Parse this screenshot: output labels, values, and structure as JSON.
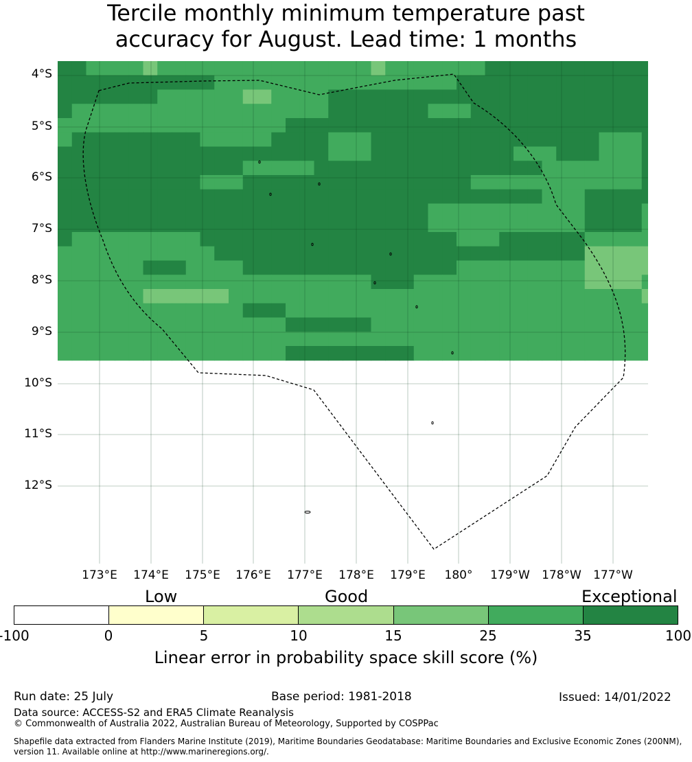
{
  "title": {
    "line1": "Tercile monthly minimum temperature past",
    "line2": "accuracy for August. Lead time: 1 months"
  },
  "map": {
    "lat_labels": [
      "4°S",
      "5°S",
      "6°S",
      "7°S",
      "8°S",
      "9°S",
      "10°S",
      "11°S",
      "12°S"
    ],
    "lon_labels": [
      "173°E",
      "174°E",
      "175°E",
      "176°E",
      "177°E",
      "178°E",
      "179°E",
      "180°",
      "179°W",
      "178°W",
      "177°W"
    ],
    "boundary_style": "dashed black (EEZ)",
    "grid": "on",
    "cell_classes": {
      "0": "no data (white)",
      "4": "15 to 25",
      "5": "25 to 35",
      "6": "35 to 100"
    },
    "cells": [
      [
        6,
        6,
        5,
        5,
        5,
        5,
        4,
        5,
        5,
        5,
        5,
        5,
        5,
        5,
        5,
        5,
        5,
        5,
        5,
        5,
        5,
        5,
        4,
        5,
        5,
        5,
        5,
        5,
        5,
        5,
        6,
        6,
        6,
        6,
        6,
        6,
        6,
        6,
        6,
        6,
        6,
        6
      ],
      [
        6,
        6,
        6,
        6,
        6,
        6,
        6,
        6,
        6,
        6,
        6,
        5,
        5,
        5,
        5,
        5,
        5,
        5,
        5,
        5,
        5,
        5,
        5,
        5,
        5,
        5,
        5,
        5,
        6,
        6,
        6,
        6,
        6,
        6,
        6,
        6,
        6,
        6,
        6,
        6,
        6,
        6
      ],
      [
        6,
        6,
        6,
        6,
        6,
        6,
        6,
        5,
        5,
        5,
        5,
        5,
        5,
        4,
        4,
        5,
        5,
        5,
        5,
        6,
        6,
        6,
        6,
        6,
        6,
        6,
        6,
        6,
        6,
        6,
        6,
        6,
        6,
        6,
        6,
        6,
        6,
        6,
        6,
        6,
        6,
        6
      ],
      [
        6,
        5,
        5,
        5,
        5,
        5,
        5,
        5,
        5,
        5,
        5,
        5,
        5,
        5,
        5,
        5,
        5,
        5,
        5,
        6,
        6,
        6,
        6,
        6,
        6,
        6,
        5,
        5,
        5,
        6,
        6,
        6,
        6,
        6,
        6,
        6,
        6,
        6,
        6,
        6,
        6,
        6
      ],
      [
        5,
        5,
        5,
        5,
        5,
        5,
        5,
        5,
        5,
        5,
        5,
        5,
        5,
        5,
        5,
        5,
        6,
        6,
        6,
        6,
        6,
        6,
        6,
        6,
        6,
        6,
        6,
        6,
        6,
        6,
        6,
        6,
        6,
        6,
        6,
        6,
        6,
        6,
        6,
        6,
        6,
        6
      ],
      [
        5,
        6,
        6,
        6,
        6,
        6,
        6,
        6,
        6,
        6,
        5,
        5,
        5,
        5,
        5,
        6,
        6,
        6,
        6,
        5,
        5,
        5,
        6,
        6,
        6,
        6,
        6,
        6,
        6,
        6,
        6,
        6,
        6,
        6,
        6,
        6,
        6,
        6,
        5,
        5,
        5,
        6
      ],
      [
        6,
        6,
        6,
        6,
        6,
        6,
        6,
        6,
        6,
        6,
        6,
        6,
        6,
        6,
        6,
        6,
        6,
        6,
        6,
        5,
        5,
        5,
        6,
        6,
        6,
        6,
        6,
        6,
        6,
        6,
        6,
        6,
        5,
        5,
        5,
        6,
        6,
        6,
        5,
        5,
        5,
        6
      ],
      [
        6,
        6,
        6,
        6,
        6,
        6,
        6,
        6,
        6,
        6,
        6,
        6,
        6,
        5,
        5,
        5,
        5,
        5,
        6,
        6,
        6,
        6,
        6,
        6,
        6,
        6,
        6,
        6,
        6,
        6,
        6,
        6,
        6,
        6,
        5,
        5,
        5,
        5,
        5,
        5,
        5,
        6
      ],
      [
        6,
        6,
        6,
        6,
        6,
        6,
        6,
        6,
        6,
        6,
        5,
        5,
        5,
        6,
        6,
        6,
        6,
        6,
        6,
        6,
        6,
        6,
        6,
        6,
        6,
        6,
        6,
        6,
        6,
        5,
        5,
        5,
        5,
        5,
        5,
        5,
        5,
        5,
        5,
        5,
        5,
        6
      ],
      [
        6,
        6,
        6,
        6,
        6,
        6,
        6,
        6,
        6,
        6,
        6,
        6,
        6,
        6,
        6,
        6,
        6,
        6,
        6,
        6,
        6,
        6,
        6,
        6,
        6,
        6,
        6,
        6,
        6,
        6,
        6,
        6,
        6,
        6,
        5,
        5,
        5,
        6,
        6,
        6,
        6,
        6
      ],
      [
        6,
        6,
        6,
        6,
        6,
        6,
        6,
        6,
        6,
        6,
        6,
        6,
        6,
        6,
        6,
        6,
        6,
        6,
        6,
        6,
        6,
        6,
        6,
        6,
        6,
        6,
        5,
        5,
        5,
        5,
        5,
        5,
        5,
        5,
        5,
        5,
        5,
        6,
        6,
        6,
        6,
        5
      ],
      [
        6,
        6,
        6,
        6,
        6,
        6,
        6,
        6,
        6,
        6,
        6,
        6,
        6,
        6,
        6,
        6,
        6,
        6,
        6,
        6,
        6,
        6,
        6,
        6,
        6,
        6,
        5,
        5,
        5,
        5,
        5,
        5,
        5,
        5,
        5,
        5,
        5,
        6,
        6,
        6,
        6,
        5
      ],
      [
        6,
        5,
        5,
        5,
        5,
        5,
        5,
        5,
        5,
        5,
        6,
        6,
        6,
        6,
        6,
        6,
        6,
        6,
        6,
        6,
        6,
        6,
        6,
        6,
        6,
        6,
        6,
        6,
        5,
        5,
        5,
        6,
        6,
        6,
        6,
        6,
        6,
        5,
        5,
        5,
        5,
        5
      ],
      [
        5,
        5,
        5,
        5,
        5,
        5,
        5,
        5,
        5,
        5,
        5,
        6,
        6,
        6,
        6,
        6,
        6,
        6,
        6,
        6,
        6,
        6,
        6,
        6,
        6,
        6,
        6,
        6,
        6,
        6,
        6,
        6,
        6,
        6,
        6,
        6,
        6,
        4,
        4,
        4,
        4,
        4
      ],
      [
        5,
        5,
        5,
        5,
        5,
        5,
        6,
        6,
        6,
        5,
        5,
        5,
        5,
        6,
        6,
        6,
        6,
        6,
        6,
        6,
        6,
        6,
        6,
        6,
        6,
        6,
        6,
        6,
        5,
        5,
        5,
        5,
        5,
        5,
        5,
        5,
        5,
        4,
        4,
        4,
        4,
        4
      ],
      [
        5,
        5,
        5,
        5,
        5,
        5,
        5,
        5,
        5,
        5,
        5,
        5,
        5,
        5,
        5,
        5,
        5,
        5,
        5,
        5,
        5,
        5,
        6,
        6,
        6,
        5,
        5,
        5,
        5,
        5,
        5,
        5,
        5,
        5,
        5,
        5,
        5,
        4,
        4,
        4,
        4,
        5
      ],
      [
        5,
        5,
        5,
        5,
        5,
        5,
        4,
        4,
        4,
        4,
        4,
        4,
        5,
        5,
        5,
        5,
        5,
        5,
        5,
        5,
        5,
        5,
        5,
        5,
        5,
        5,
        5,
        5,
        5,
        5,
        5,
        5,
        5,
        5,
        5,
        5,
        5,
        5,
        5,
        5,
        5,
        4
      ],
      [
        5,
        5,
        5,
        5,
        5,
        5,
        5,
        5,
        5,
        5,
        5,
        5,
        5,
        6,
        6,
        6,
        5,
        5,
        5,
        5,
        5,
        5,
        5,
        5,
        5,
        5,
        5,
        5,
        5,
        5,
        5,
        5,
        5,
        5,
        5,
        5,
        5,
        5,
        5,
        5,
        5,
        5
      ],
      [
        5,
        5,
        5,
        5,
        5,
        5,
        5,
        5,
        5,
        5,
        5,
        5,
        5,
        5,
        5,
        5,
        6,
        6,
        6,
        6,
        6,
        6,
        5,
        5,
        5,
        5,
        5,
        5,
        5,
        5,
        5,
        5,
        5,
        5,
        5,
        5,
        5,
        5,
        5,
        5,
        5,
        5
      ],
      [
        5,
        5,
        5,
        5,
        5,
        5,
        5,
        5,
        5,
        5,
        5,
        5,
        5,
        5,
        5,
        5,
        5,
        5,
        5,
        5,
        5,
        5,
        5,
        5,
        5,
        5,
        5,
        5,
        5,
        5,
        5,
        5,
        5,
        5,
        5,
        5,
        5,
        5,
        5,
        5,
        5,
        5
      ],
      [
        5,
        5,
        5,
        5,
        5,
        5,
        5,
        5,
        5,
        5,
        5,
        5,
        5,
        5,
        5,
        5,
        6,
        6,
        6,
        6,
        6,
        6,
        6,
        6,
        6,
        5,
        5,
        5,
        5,
        5,
        5,
        5,
        5,
        5,
        5,
        5,
        5,
        5,
        5,
        5,
        5,
        5
      ]
    ]
  },
  "legend": {
    "categories": [
      "Low",
      "Good",
      "Exceptional"
    ],
    "ticks": [
      "-100",
      "0",
      "5",
      "10",
      "15",
      "25",
      "35",
      "100"
    ],
    "colors": [
      "#ffffff",
      "#ffffcc",
      "#d9f0a3",
      "#addd8e",
      "#78c679",
      "#41ab5d",
      "#238443"
    ],
    "title": "Linear error in probability space skill score (%)"
  },
  "footer": {
    "run_date": "Run date: 25 July",
    "base_period": "Base period: 1981-2018",
    "issued": "Issued: 14/01/2022",
    "data_source": "Data source: ACCESS-S2 and ERA5 Climate Reanalysis",
    "copyright": "© Commonwealth of Australia 2022, Australian Bureau of Meteorology, Supported by COSPPac",
    "shapefile_line1": "Shapefile data extracted from Flanders Marine Institute (2019), Maritime Boundaries Geodatabase: Maritime Boundaries and Exclusive Economic Zones (200NM),",
    "shapefile_line2": "version 11. Available online at http://www.marineregions.org/."
  }
}
